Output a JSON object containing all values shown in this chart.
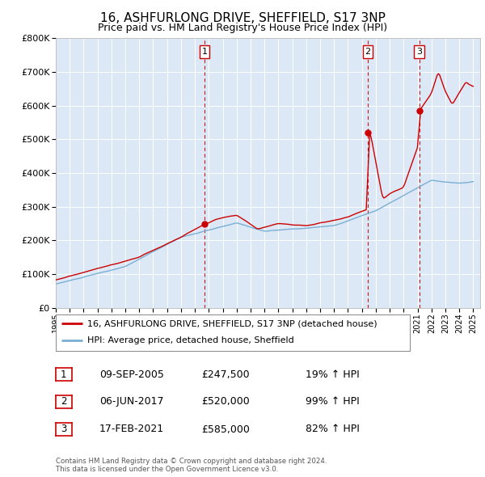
{
  "title": "16, ASHFURLONG DRIVE, SHEFFIELD, S17 3NP",
  "subtitle": "Price paid vs. HM Land Registry's House Price Index (HPI)",
  "title_fontsize": 11,
  "subtitle_fontsize": 9,
  "plot_bg_color": "#dce8f5",
  "red_color": "#cc0000",
  "blue_color": "#7aafd4",
  "sales": [
    {
      "label": "1",
      "date_str": "09-SEP-2005",
      "year_idx": 126,
      "year": 2005.69,
      "price": 247500,
      "pct": "19%",
      "dir": "↑"
    },
    {
      "label": "2",
      "date_str": "06-JUN-2017",
      "year_idx": 268,
      "year": 2017.43,
      "price": 520000,
      "pct": "99%",
      "dir": "↑"
    },
    {
      "label": "3",
      "date_str": "17-FEB-2021",
      "year_idx": 314,
      "year": 2021.12,
      "price": 585000,
      "pct": "82%",
      "dir": "↑"
    }
  ],
  "legend_label_red": "16, ASHFURLONG DRIVE, SHEFFIELD, S17 3NP (detached house)",
  "legend_label_blue": "HPI: Average price, detached house, Sheffield",
  "footer": "Contains HM Land Registry data © Crown copyright and database right 2024.\nThis data is licensed under the Open Government Licence v3.0.",
  "xmin": 1995,
  "xmax": 2025.5,
  "ymin": 0,
  "ymax": 800000
}
